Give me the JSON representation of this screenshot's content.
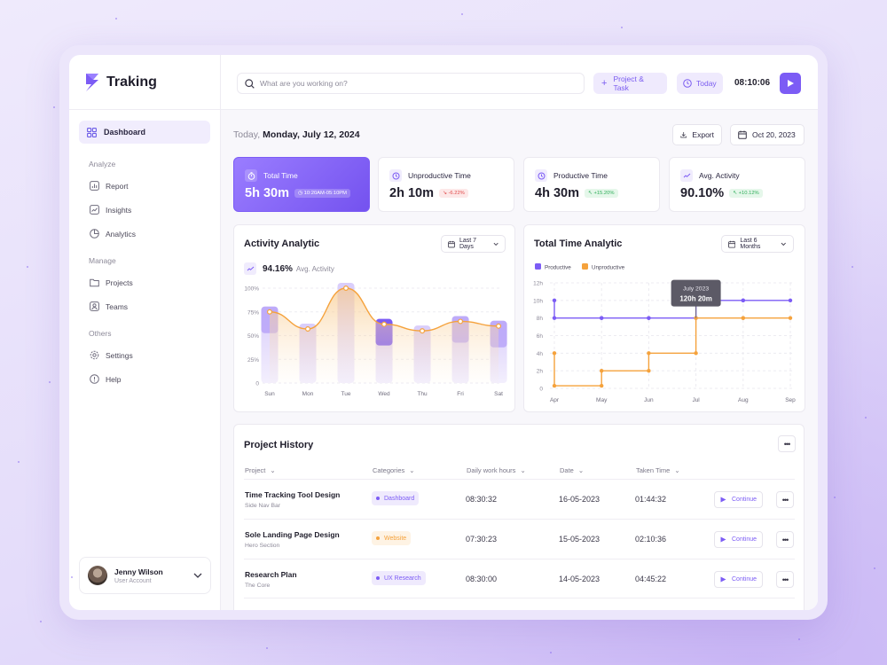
{
  "brand": {
    "name": "Traking",
    "accent": "#7C5CF5"
  },
  "sidebar": {
    "active": {
      "label": "Dashboard",
      "icon": "grid-icon"
    },
    "sections": [
      {
        "title": "Analyze",
        "items": [
          {
            "label": "Report",
            "icon": "report-icon"
          },
          {
            "label": "Insights",
            "icon": "insights-icon"
          },
          {
            "label": "Analytics",
            "icon": "pie-chart-icon"
          }
        ]
      },
      {
        "title": "Manage",
        "items": [
          {
            "label": "Projects",
            "icon": "folder-icon"
          },
          {
            "label": "Teams",
            "icon": "team-icon"
          }
        ]
      },
      {
        "title": "Others",
        "items": [
          {
            "label": "Settings",
            "icon": "gear-icon"
          },
          {
            "label": "Help",
            "icon": "help-icon"
          }
        ]
      }
    ],
    "user": {
      "name": "Jenny Wilson",
      "role": "User Account"
    }
  },
  "topbar": {
    "search_placeholder": "What are you working on?",
    "project_task_label": "Project & Task",
    "today_label": "Today",
    "clock": "08:10:06"
  },
  "header": {
    "prefix": "Today,",
    "date": "Monday, July 12, 2024",
    "export_label": "Export",
    "date_filter": "Oct 20, 2023"
  },
  "stats": [
    {
      "label": "Total Time",
      "value": "5h 30m",
      "chip": "10:20AM-05:10PM",
      "chip_kind": "time"
    },
    {
      "label": "Unproductive Time",
      "value": "2h 10m",
      "chip": "-6.22%",
      "chip_kind": "down"
    },
    {
      "label": "Productive Time",
      "value": "4h 30m",
      "chip": "+15.20%",
      "chip_kind": "up"
    },
    {
      "label": "Avg. Activity",
      "value": "90.10%",
      "chip": "+10.12%",
      "chip_kind": "up"
    }
  ],
  "activity": {
    "title": "Activity Analytic",
    "filter": "Last 7 Days",
    "avg_value": "94.16%",
    "avg_label": "Avg. Activity"
  },
  "total_time": {
    "title": "Total Time Analytic",
    "filter": "Last 6 Months",
    "tooltip_month": "July 2023",
    "tooltip_value": "120h 20m"
  },
  "chart_data": [
    {
      "type": "bar",
      "title": "Activity Analytic",
      "categories": [
        "Sun",
        "Mon",
        "Tue",
        "Wed",
        "Thu",
        "Fri",
        "Sat"
      ],
      "values": [
        75,
        57,
        100,
        62,
        55,
        65,
        60
      ],
      "yticks": [
        "100%",
        "75%",
        "50%",
        "25%",
        "0"
      ],
      "ylim": [
        0,
        100
      ],
      "highlight": "#7C5CF5",
      "line_color": "#F5A23C"
    },
    {
      "type": "line",
      "title": "Total Time Analytic",
      "categories": [
        "Apr",
        "May",
        "Jun",
        "Jul",
        "Aug",
        "Sep"
      ],
      "yticks": [
        "12h",
        "10h",
        "8h",
        "6h",
        "4h",
        "2h",
        "0"
      ],
      "ylim": [
        0,
        12
      ],
      "legend": "top-left",
      "series": [
        {
          "name": "Productive",
          "color": "#7C5CF5",
          "values": [
            10,
            8,
            8,
            8,
            10,
            10
          ]
        },
        {
          "name": "Unproductive",
          "color": "#F5A23C",
          "values": [
            4,
            0.3,
            2,
            4,
            8,
            8
          ]
        }
      ]
    }
  ],
  "history": {
    "title": "Project History",
    "columns": [
      "Project",
      "Categories",
      "Daily work hours",
      "Date",
      "Taken Time"
    ],
    "continue_label": "Continue",
    "rows": [
      {
        "title": "Time Tracking Tool Design",
        "sub": "Side Nav Bar",
        "category": "Dashboard",
        "cat_color": "#7C5CF5",
        "cat_bg": "#EFEAFD",
        "hours": "08:30:32",
        "date": "16-05-2023",
        "taken": "01:44:32"
      },
      {
        "title": "Sole Landing Page Design",
        "sub": "Hero Section",
        "category": "Website",
        "cat_color": "#F5A23C",
        "cat_bg": "#FEF3E4",
        "hours": "07:30:23",
        "date": "15-05-2023",
        "taken": "02:10:36"
      },
      {
        "title": "Research Plan",
        "sub": "The Core",
        "category": "UX Research",
        "cat_color": "#7C5CF5",
        "cat_bg": "#EFEAFD",
        "hours": "08:30:00",
        "date": "14-05-2023",
        "taken": "04:45:22"
      }
    ]
  }
}
